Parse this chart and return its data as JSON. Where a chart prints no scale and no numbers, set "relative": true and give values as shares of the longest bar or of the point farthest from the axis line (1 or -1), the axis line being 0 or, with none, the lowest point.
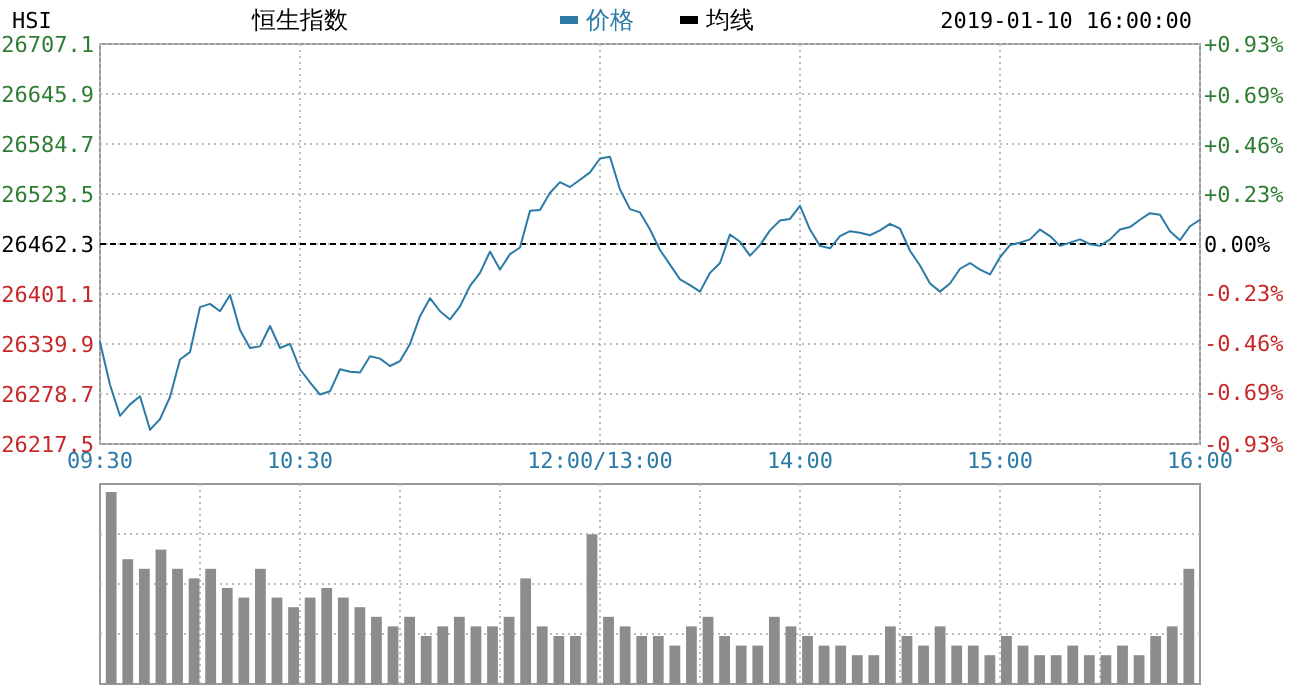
{
  "chart_data": [
    {
      "type": "line",
      "title": "HSI",
      "subtitle": "恒生指数",
      "annotations": [
        "2019-01-10 16:00:00"
      ],
      "legend": "top",
      "grid": true,
      "categories": [
        "09:30",
        null,
        null,
        null,
        null,
        null,
        null,
        null,
        null,
        null,
        null,
        null,
        null,
        null,
        null,
        null,
        null,
        null,
        null,
        null,
        "10:30",
        null,
        null,
        null,
        null,
        null,
        null,
        null,
        null,
        null,
        null,
        null,
        null,
        null,
        null,
        null,
        null,
        null,
        null,
        null,
        null,
        null,
        null,
        null,
        null,
        null,
        null,
        null,
        null,
        null,
        "12:00/13:00",
        null,
        null,
        null,
        null,
        null,
        null,
        null,
        null,
        null,
        null,
        null,
        null,
        null,
        null,
        null,
        null,
        null,
        null,
        null,
        "14:00",
        null,
        null,
        null,
        null,
        null,
        null,
        null,
        null,
        null,
        null,
        null,
        null,
        null,
        null,
        null,
        null,
        null,
        null,
        null,
        "15:00",
        null,
        null,
        null,
        null,
        null,
        null,
        null,
        null,
        null,
        null,
        null,
        null,
        null,
        null,
        null,
        null,
        null,
        null,
        null,
        "16:00"
      ],
      "ylim": [
        26217.5,
        26707.1
      ],
      "yticks": [
        {
          "value": 26217.5,
          "label": "26217.5"
        },
        {
          "value": 26278.7,
          "label": "26278.7"
        },
        {
          "value": 26339.9,
          "label": "26339.9"
        },
        {
          "value": 26401.1,
          "label": "26401.1"
        },
        {
          "value": 26462.3,
          "label": "26462.3"
        },
        {
          "value": 26523.5,
          "label": "26523.5"
        },
        {
          "value": 26584.7,
          "label": "26584.7"
        },
        {
          "value": 26645.9,
          "label": "26645.9"
        },
        {
          "value": 26707.1,
          "label": "26707.1"
        }
      ],
      "y2lim": [
        -0.93,
        0.93
      ],
      "y2ticks": [
        {
          "value": -0.93,
          "label": "-0.93%"
        },
        {
          "value": -0.69,
          "label": "-0.69%"
        },
        {
          "value": -0.46,
          "label": "-0.46%"
        },
        {
          "value": -0.23,
          "label": "-0.23%"
        },
        {
          "value": 0,
          "label": "0.00%"
        },
        {
          "value": 0.23,
          "label": "+0.23%"
        },
        {
          "value": 0.46,
          "label": "+0.46%"
        },
        {
          "value": 0.69,
          "label": "+0.69%"
        },
        {
          "value": 0.93,
          "label": "+0.93%"
        }
      ],
      "ref_lines": [
        {
          "axis": "y",
          "value": 26462.3,
          "color": "#000000",
          "line_style": "dashed"
        }
      ],
      "series": [
        {
          "name": "价格",
          "color": "#2c7aa6",
          "values": [
            26342,
            26290,
            26252,
            26266,
            26276,
            26235,
            26248,
            26275,
            26321,
            26330,
            26385,
            26389,
            26380,
            26400,
            26357,
            26335,
            26337,
            26362,
            26335,
            26340,
            26309,
            26293,
            26278,
            26282,
            26309,
            26306,
            26305,
            26325,
            26322,
            26313,
            26319,
            26340,
            26374,
            26396,
            26380,
            26370,
            26386,
            26411,
            26427,
            26453,
            26431,
            26450,
            26458,
            26503,
            26504,
            26525,
            26538,
            26532,
            26541,
            26550,
            26567,
            26569,
            26529,
            26505,
            26501,
            26480,
            26455,
            26437,
            26419,
            26412,
            26404,
            26427,
            26439,
            26474,
            26465,
            26448,
            26461,
            26479,
            26491,
            26493,
            26509,
            26480,
            26460,
            26457,
            26472,
            26478,
            26476,
            26473,
            26479,
            26487,
            26481,
            26454,
            26436,
            26414,
            26404,
            26414,
            26432,
            26439,
            26431,
            26425,
            26446,
            26461,
            26464,
            26468,
            26480,
            26472,
            26460,
            26464,
            26468,
            26462,
            26460,
            26468,
            26480,
            26483,
            26492,
            26500,
            26498,
            26478,
            26467,
            26484,
            26492
          ]
        },
        {
          "name": "均线",
          "color": "#000000",
          "values": [
            null,
            null,
            null,
            null,
            null,
            null,
            null,
            null,
            null,
            null,
            null,
            null,
            null,
            null,
            null,
            null,
            null,
            null,
            null,
            null,
            null,
            null,
            null,
            null,
            null,
            null,
            null,
            null,
            null,
            null,
            null,
            null,
            null,
            null,
            null,
            null,
            null,
            null,
            null,
            null,
            null,
            null,
            null,
            null,
            null,
            null,
            null,
            null,
            null,
            null,
            null,
            null,
            null,
            null,
            null,
            null,
            null,
            null,
            null,
            null,
            null,
            null,
            null,
            null,
            null,
            null,
            null,
            null,
            null,
            null,
            null,
            null,
            null,
            null,
            null,
            null,
            null,
            null,
            null,
            null,
            null,
            null,
            null,
            null,
            null,
            null,
            null,
            null,
            null,
            null,
            null,
            null,
            null,
            null,
            null,
            null,
            null,
            null,
            null,
            null,
            null,
            null,
            null,
            null,
            null,
            null,
            null,
            null,
            null,
            null,
            null
          ]
        }
      ]
    },
    {
      "type": "bar",
      "relative": true,
      "grid": true,
      "color": "#8c8c8c",
      "categories": [
        null,
        null,
        null,
        null,
        null,
        null,
        null,
        null,
        null,
        null,
        null,
        null,
        null,
        null,
        null,
        null,
        null,
        null,
        null,
        null,
        null,
        null,
        null,
        null,
        null,
        null,
        null,
        null,
        null,
        null,
        null,
        null,
        null,
        null,
        null,
        null,
        null,
        null,
        null,
        null,
        null,
        null,
        null,
        null,
        null,
        null,
        null,
        null,
        null,
        null,
        null,
        null,
        null,
        null,
        null,
        null,
        null,
        null,
        null,
        null,
        null,
        null,
        null,
        null,
        null,
        null
      ],
      "values": [
        1.0,
        0.65,
        0.6,
        0.7,
        0.6,
        0.55,
        0.6,
        0.5,
        0.45,
        0.6,
        0.45,
        0.4,
        0.45,
        0.5,
        0.45,
        0.4,
        0.35,
        0.3,
        0.35,
        0.25,
        0.3,
        0.35,
        0.3,
        0.3,
        0.35,
        0.55,
        0.3,
        0.25,
        0.25,
        0.78,
        0.35,
        0.3,
        0.25,
        0.25,
        0.2,
        0.3,
        0.35,
        0.25,
        0.2,
        0.2,
        0.35,
        0.3,
        0.25,
        0.2,
        0.2,
        0.15,
        0.15,
        0.3,
        0.25,
        0.2,
        0.3,
        0.2,
        0.2,
        0.15,
        0.25,
        0.2,
        0.15,
        0.15,
        0.2,
        0.15,
        0.15,
        0.2,
        0.15,
        0.25,
        0.3,
        0.6
      ]
    }
  ]
}
